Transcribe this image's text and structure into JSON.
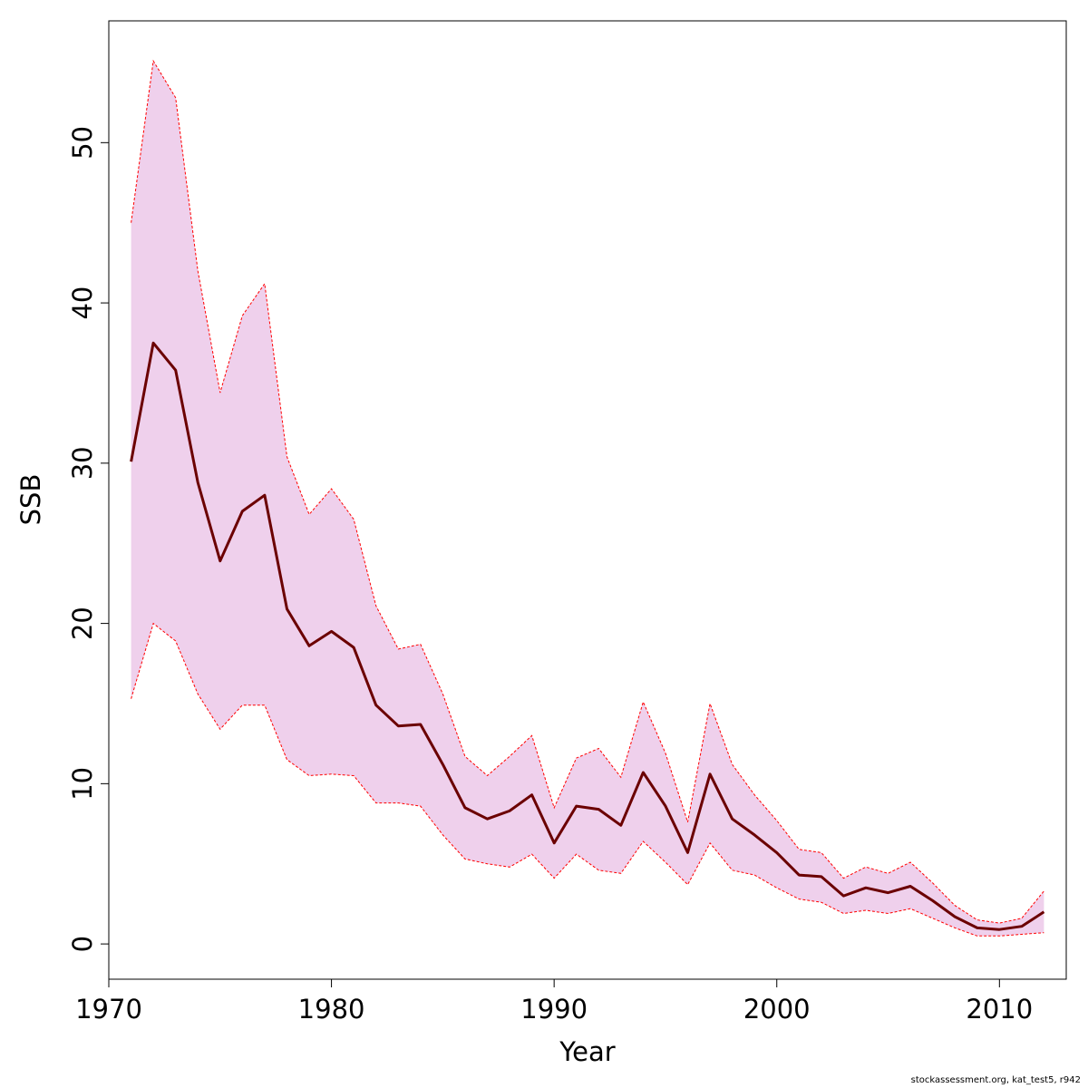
{
  "chart_data": {
    "type": "line",
    "xlabel": "Year",
    "ylabel": "SSB",
    "xlim": [
      1970,
      2013
    ],
    "ylim": [
      -2.2,
      57.6
    ],
    "xticks": [
      1970,
      1980,
      1990,
      2000,
      2010
    ],
    "yticks": [
      0,
      10,
      20,
      30,
      40,
      50
    ],
    "grid": false,
    "x": [
      1971,
      1972,
      1973,
      1974,
      1975,
      1976,
      1977,
      1978,
      1979,
      1980,
      1981,
      1982,
      1983,
      1984,
      1985,
      1986,
      1987,
      1988,
      1989,
      1990,
      1991,
      1992,
      1993,
      1994,
      1995,
      1996,
      1997,
      1998,
      1999,
      2000,
      2001,
      2002,
      2003,
      2004,
      2005,
      2006,
      2007,
      2008,
      2009,
      2010,
      2011,
      2012
    ],
    "series": [
      {
        "role": "estimate",
        "values": [
          30.1,
          37.5,
          35.8,
          28.8,
          23.9,
          27.0,
          28.0,
          20.9,
          18.6,
          19.5,
          18.5,
          14.9,
          13.6,
          13.7,
          11.2,
          8.5,
          7.8,
          8.3,
          9.3,
          6.3,
          8.6,
          8.4,
          7.4,
          10.7,
          8.6,
          5.7,
          10.6,
          7.8,
          6.8,
          5.7,
          4.3,
          4.2,
          3.0,
          3.5,
          3.2,
          3.6,
          2.7,
          1.7,
          1.0,
          0.9,
          1.1,
          2.0
        ],
        "color": "#6b0000"
      },
      {
        "role": "upper",
        "values": [
          45.0,
          55.1,
          52.8,
          42.0,
          34.4,
          39.2,
          41.2,
          30.4,
          26.8,
          28.4,
          26.5,
          21.1,
          18.4,
          18.7,
          15.6,
          11.7,
          10.5,
          11.7,
          13.0,
          8.5,
          11.6,
          12.2,
          10.4,
          15.1,
          11.9,
          7.6,
          15.0,
          11.2,
          9.3,
          7.7,
          5.9,
          5.7,
          4.1,
          4.8,
          4.4,
          5.1,
          3.8,
          2.4,
          1.5,
          1.3,
          1.6,
          3.3
        ],
        "color": "#ff0000"
      },
      {
        "role": "lower",
        "values": [
          15.3,
          20.0,
          18.9,
          15.6,
          13.4,
          14.9,
          14.9,
          11.5,
          10.5,
          10.6,
          10.5,
          8.8,
          8.8,
          8.6,
          6.8,
          5.3,
          5.0,
          4.8,
          5.6,
          4.1,
          5.6,
          4.6,
          4.4,
          6.4,
          5.1,
          3.7,
          6.3,
          4.6,
          4.3,
          3.5,
          2.8,
          2.6,
          1.9,
          2.1,
          1.9,
          2.2,
          1.6,
          1.0,
          0.5,
          0.5,
          0.6,
          0.7
        ],
        "color": "#ff0000"
      }
    ],
    "band_fill": "#efd0ec"
  },
  "footnote": "stockassessment.org, kat_test5, r942"
}
